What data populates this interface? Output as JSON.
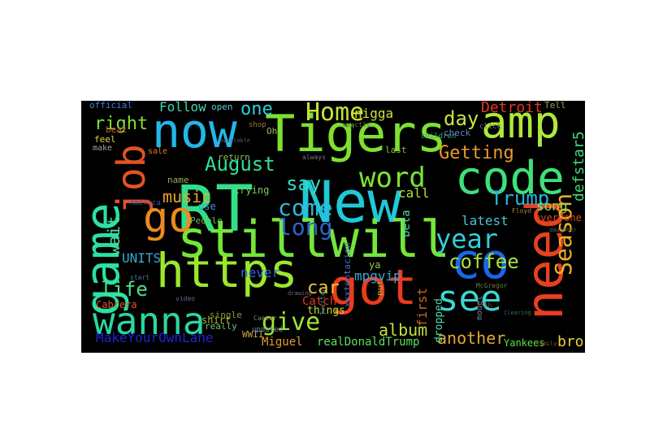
{
  "image": {
    "background": "#000000",
    "page_background": "#ffffff",
    "words": [
      {
        "text": "RT",
        "color": "#2FE08A"
      },
      {
        "text": "New",
        "color": "#20C8D8"
      },
      {
        "text": "Tigers",
        "color": "#7FE030"
      },
      {
        "text": "now",
        "color": "#22B7E8"
      },
      {
        "text": "https",
        "color": "#9BE82C"
      },
      {
        "text": "stillwill",
        "color": "#74E63A"
      },
      {
        "text": "got",
        "color": "#EE3A1C"
      },
      {
        "text": "co",
        "color": "#1B66E8"
      },
      {
        "text": "need",
        "color": "#E84020"
      },
      {
        "text": "game",
        "color": "#2DE0A2"
      },
      {
        "text": "job",
        "color": "#E35322"
      },
      {
        "text": "amp",
        "color": "#AEE83A"
      },
      {
        "text": "code",
        "color": "#3EE07A"
      },
      {
        "text": "go",
        "color": "#EE8A1E"
      },
      {
        "text": "see",
        "color": "#3FD5D2"
      },
      {
        "text": "wanna",
        "color": "#28D8A0"
      },
      {
        "text": "Season",
        "color": "#EFB028"
      },
      {
        "text": "word",
        "color": "#7CE432"
      },
      {
        "text": "year",
        "color": "#33CFD9"
      },
      {
        "text": "Home",
        "color": "#C8E534"
      },
      {
        "text": "give",
        "color": "#9FE534"
      },
      {
        "text": "come",
        "color": "#2EB8D8"
      },
      {
        "text": "long",
        "color": "#2B63D0"
      },
      {
        "text": "August",
        "color": "#2FE09A"
      },
      {
        "text": "say",
        "color": "#38D8C0"
      },
      {
        "text": "day",
        "color": "#CDE23E"
      },
      {
        "text": "coffee",
        "color": "#A4E33A"
      },
      {
        "text": "Trump",
        "color": "#24B6E0"
      },
      {
        "text": "right",
        "color": "#7EE038"
      },
      {
        "text": "life",
        "color": "#4CE08A"
      },
      {
        "text": "music",
        "color": "#EAA62A"
      },
      {
        "text": "one",
        "color": "#29D0D8"
      },
      {
        "text": "Getting",
        "color": "#EB9A2A"
      },
      {
        "text": "album",
        "color": "#C2E33A"
      },
      {
        "text": "car",
        "color": "#E3C83A"
      },
      {
        "text": "Follow",
        "color": "#3AD8B0"
      },
      {
        "text": "wait",
        "color": "#43E0A0"
      },
      {
        "text": "defstar5",
        "color": "#3EDB7A"
      },
      {
        "text": "another",
        "color": "#E5A82E"
      },
      {
        "text": "MakeYourOwnLane",
        "color": "#2320D8"
      },
      {
        "text": "first",
        "color": "#CC6A22"
      },
      {
        "text": "Detroit",
        "color": "#E43A1E"
      },
      {
        "text": "UNITS",
        "color": "#38A8D8"
      },
      {
        "text": "realDonaldTrump",
        "color": "#5BE05A"
      },
      {
        "text": "bro",
        "color": "#E9D23A"
      },
      {
        "text": "song",
        "color": "#8BE04A"
      },
      {
        "text": "latest",
        "color": "#47C2D8"
      },
      {
        "text": "call",
        "color": "#A9E03A"
      },
      {
        "text": "beta",
        "color": "#4BD9B0"
      },
      {
        "text": "nigga",
        "color": "#CBE23A"
      },
      {
        "text": "mpgvip",
        "color": "#35A6D6"
      },
      {
        "text": "never",
        "color": "#2F63D8"
      },
      {
        "text": "Cabrera",
        "color": "#E05826"
      },
      {
        "text": "Catch",
        "color": "#E03A1C"
      },
      {
        "text": "dropped",
        "color": "#4DD9B0"
      },
      {
        "text": "Miguel",
        "color": "#E0A02E"
      },
      {
        "text": "Yankees",
        "color": "#5BE04A"
      },
      {
        "text": "everyone",
        "color": "#E04A20"
      },
      {
        "text": "official",
        "color": "#3A7ED8"
      },
      {
        "text": "feel",
        "color": "#E8D244"
      },
      {
        "text": "make",
        "color": "#A0A0A0"
      },
      {
        "text": "sale",
        "color": "#E07A26"
      },
      {
        "text": "things",
        "color": "#B5E03A"
      },
      {
        "text": "single",
        "color": "#8A9A40"
      },
      {
        "text": "really",
        "color": "#6CC26E"
      },
      {
        "text": "trying",
        "color": "#7CC860"
      },
      {
        "text": "open",
        "color": "#5AC8D8"
      },
      {
        "text": "name",
        "color": "#9AB04A"
      },
      {
        "text": "use",
        "color": "#3A9AD0"
      },
      {
        "text": "People",
        "color": "#6CC04C"
      },
      {
        "text": "return",
        "color": "#8AC25A"
      },
      {
        "text": "shirt",
        "color": "#B0B03A"
      },
      {
        "text": "xxxtentacion",
        "color": "#5070C8"
      },
      {
        "text": "model",
        "color": "#6A8AA0"
      },
      {
        "text": "put",
        "color": "#9AAA40"
      },
      {
        "text": "check",
        "color": "#5A8AD0"
      },
      {
        "text": "last",
        "color": "#8AC040"
      },
      {
        "text": "WWII",
        "color": "#C8A04A"
      },
      {
        "text": "beat",
        "color": "#D05A30"
      },
      {
        "text": "Oh",
        "color": "#A0C04A"
      },
      {
        "text": "Tell",
        "color": "#9AA050"
      },
      {
        "text": "America",
        "color": "#3A58A0"
      },
      {
        "text": "always",
        "color": "#7A7A7A"
      },
      {
        "text": "updated",
        "color": "#6A90A0"
      },
      {
        "text": "children",
        "color": "#40A080"
      },
      {
        "text": "ya",
        "color": "#9CC040"
      },
      {
        "text": "shop",
        "color": "#A07A40"
      },
      {
        "text": "click",
        "color": "#707070"
      },
      {
        "text": "video",
        "color": "#5A6A9A"
      },
      {
        "text": "start",
        "color": "#4A7AA0"
      },
      {
        "text": "McGregor",
        "color": "#6A8040"
      },
      {
        "text": "Caesar",
        "color": "#808060"
      },
      {
        "text": "Twitter",
        "color": "#4A6A8A"
      },
      {
        "text": "rn",
        "color": "#6AA040"
      },
      {
        "text": "Floyd",
        "color": "#A08A40"
      },
      {
        "text": "Clearing",
        "color": "#3A6A6A"
      },
      {
        "text": "daughter",
        "color": "#5A6A60"
      },
      {
        "text": "family",
        "color": "#7A5A40"
      },
      {
        "text": "exactly",
        "color": "#5A7A50"
      },
      {
        "text": "drawing",
        "color": "#6A6A90"
      },
      {
        "text": "17th",
        "color": "#8A4A30"
      },
      {
        "text": "available",
        "color": "#5A5A70"
      }
    ]
  }
}
